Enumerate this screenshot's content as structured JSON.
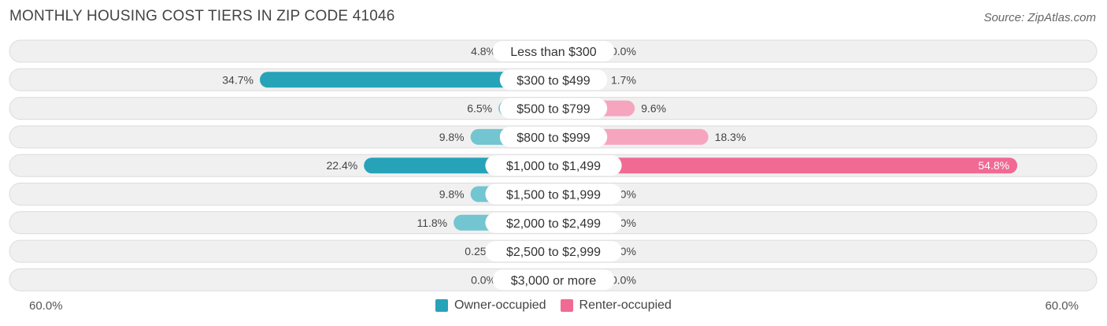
{
  "header": {
    "title": "MONTHLY HOUSING COST TIERS IN ZIP CODE 41046",
    "source": "Source: ZipAtlas.com"
  },
  "colors": {
    "owner_strong": "#26a3b8",
    "owner_light": "#72c5d1",
    "renter_strong": "#f06a93",
    "renter_light": "#f6a5bf",
    "row_bg": "#f0f0f0",
    "row_border": "#dcdcdc"
  },
  "chart_data": {
    "type": "bar",
    "orientation": "horizontal-diverging",
    "categories": [
      "Less than $300",
      "$300 to $499",
      "$500 to $799",
      "$800 to $999",
      "$1,000 to $1,499",
      "$1,500 to $1,999",
      "$2,000 to $2,499",
      "$2,500 to $2,999",
      "$3,000 or more"
    ],
    "series": [
      {
        "name": "Owner-occupied",
        "values": [
          4.8,
          34.7,
          6.5,
          9.8,
          22.4,
          9.8,
          11.8,
          0.25,
          0.0
        ],
        "labels": [
          "4.8%",
          "34.7%",
          "6.5%",
          "9.8%",
          "22.4%",
          "9.8%",
          "11.8%",
          "0.25%",
          "0.0%"
        ]
      },
      {
        "name": "Renter-occupied",
        "values": [
          0.0,
          1.7,
          9.6,
          18.3,
          54.8,
          0.0,
          0.0,
          0.0,
          0.0
        ],
        "labels": [
          "0.0%",
          "1.7%",
          "9.6%",
          "18.3%",
          "54.8%",
          "0.0%",
          "0.0%",
          "0.0%",
          "0.0%"
        ]
      }
    ],
    "xlim": [
      -60,
      60
    ],
    "axis_tick_labels": {
      "left": "60.0%",
      "right": "60.0%"
    },
    "legend_position": "bottom-center",
    "grid": false
  }
}
